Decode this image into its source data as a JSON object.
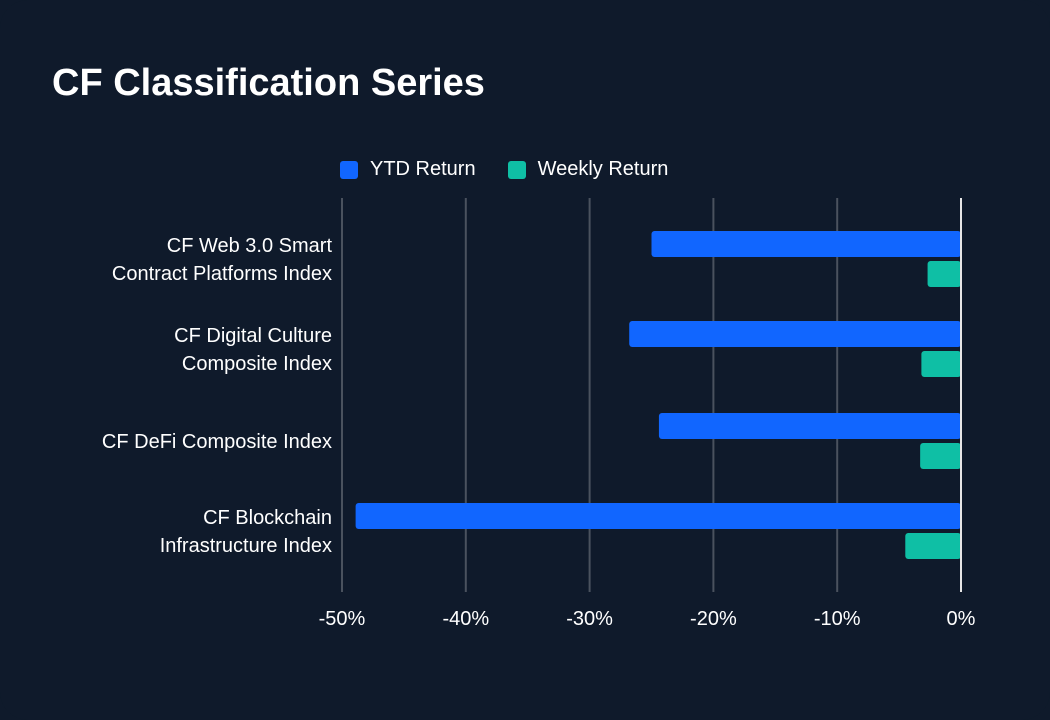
{
  "title": "CF Classification Series",
  "colors": {
    "background": "#0f1a2b",
    "ytd": "#1166ff",
    "weekly": "#0fbfa5",
    "grid": "#4a525e",
    "zero_line": "#e6e6e6"
  },
  "chart_data": {
    "type": "bar",
    "orientation": "horizontal",
    "title": "CF Classification Series",
    "categories": [
      [
        "CF Web 3.0 Smart",
        "Contract Platforms Index"
      ],
      [
        "CF Digital Culture",
        "Composite Index"
      ],
      [
        "CF DeFi Composite Index"
      ],
      [
        "CF Blockchain",
        "Infrastructure Index"
      ]
    ],
    "series": [
      {
        "name": "YTD Return",
        "values": [
          -25.0,
          -26.8,
          -24.4,
          -48.9
        ]
      },
      {
        "name": "Weekly Return",
        "values": [
          -2.7,
          -3.2,
          -3.3,
          -4.5
        ]
      }
    ],
    "xlim": [
      -50,
      0
    ],
    "xticks": [
      -50,
      -40,
      -30,
      -20,
      -10,
      0
    ],
    "xtick_labels": [
      "-50%",
      "-40%",
      "-30%",
      "-20%",
      "-10%",
      "0%"
    ],
    "grid": true,
    "legend_position": "top-center"
  }
}
